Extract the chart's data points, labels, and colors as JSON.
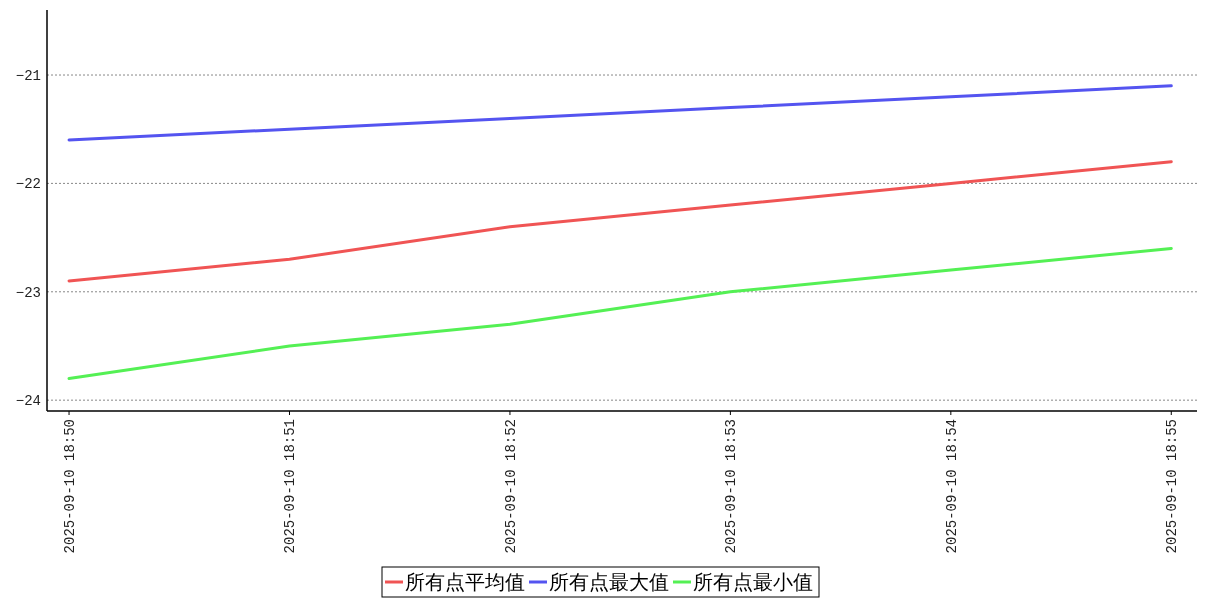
{
  "chart_data": {
    "type": "line",
    "x": [
      "2025-09-10T18:50",
      "2025-09-10T18:51",
      "2025-09-10T18:52",
      "2025-09-10T18:53",
      "2025-09-10T18:54",
      "2025-09-10T18:55"
    ],
    "series": [
      {
        "name": "所有点平均值",
        "color": "#f05454",
        "values": [
          -22.9,
          -22.7,
          -22.4,
          -22.2,
          -22.0,
          -21.8
        ]
      },
      {
        "name": "所有点最大值",
        "color": "#5454f0",
        "values": [
          -21.6,
          -21.5,
          -21.4,
          -21.3,
          -21.2,
          -21.1
        ]
      },
      {
        "name": "所有点最小值",
        "color": "#54f054",
        "values": [
          -23.8,
          -23.5,
          -23.3,
          -23.0,
          -22.8,
          -22.6
        ]
      }
    ],
    "xlim": [
      "2025-09-10T18:49:54",
      "2025-09-10T18:55:07"
    ],
    "ylim": [
      -24.1,
      -20.4
    ],
    "yticks": [
      {
        "value": -24,
        "label": "−24"
      },
      {
        "value": -23,
        "label": "−23"
      },
      {
        "value": -22,
        "label": "−22"
      },
      {
        "value": -21,
        "label": "−21"
      }
    ],
    "xticks": [
      {
        "value": "2025-09-10T18:50",
        "label": "2025-09-10 18:50"
      },
      {
        "value": "2025-09-10T18:51",
        "label": "2025-09-10 18:51"
      },
      {
        "value": "2025-09-10T18:52",
        "label": "2025-09-10 18:52"
      },
      {
        "value": "2025-09-10T18:53",
        "label": "2025-09-10 18:53"
      },
      {
        "value": "2025-09-10T18:54",
        "label": "2025-09-10 18:54"
      },
      {
        "value": "2025-09-10T18:55",
        "label": "2025-09-10 18:55"
      }
    ],
    "grid": "y",
    "legend": "bottom",
    "line_style": "solid",
    "marker": "none"
  }
}
